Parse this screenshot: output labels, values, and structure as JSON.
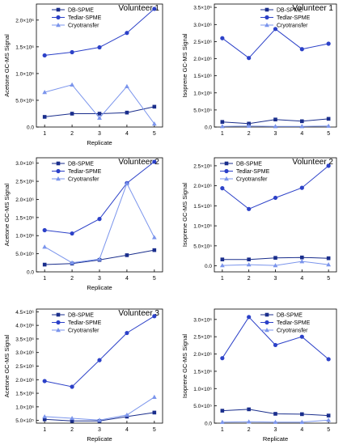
{
  "chart_data": [
    {
      "type": "line",
      "title": "Volunteer 1",
      "xlabel": "Replicate",
      "ylabel": "Acetone GC-MS Signal",
      "x": [
        1,
        2,
        3,
        4,
        5
      ],
      "ylim": [
        0,
        2300000
      ],
      "yticks": [
        {
          "value": 0,
          "label": "0.0"
        },
        {
          "value": 500000,
          "label": "5.0×10⁵"
        },
        {
          "value": 1000000,
          "label": "1.0×10⁶"
        },
        {
          "value": 1500000,
          "label": "1.5×10⁶"
        },
        {
          "value": 2000000,
          "label": "2.0×10⁶"
        }
      ],
      "legend": "top-left",
      "series": [
        {
          "name": "DB-SPME",
          "marker": "square",
          "values": [
            190000,
            250000,
            250000,
            270000,
            380000
          ]
        },
        {
          "name": "Tedlar-SPME",
          "marker": "circle",
          "values": [
            1340000,
            1400000,
            1490000,
            1760000,
            2210000
          ]
        },
        {
          "name": "Cryotransfer",
          "marker": "triangle",
          "values": [
            650000,
            790000,
            170000,
            760000,
            60000
          ]
        }
      ]
    },
    {
      "type": "line",
      "title": "Volunteer 1",
      "xlabel": "",
      "ylabel": "Isoprene GC-MS Signal",
      "x": [
        1,
        2,
        3,
        4,
        5
      ],
      "ylim": [
        0,
        3600000
      ],
      "yticks": [
        {
          "value": 0,
          "label": "0.0"
        },
        {
          "value": 500000,
          "label": "5.0×10⁵"
        },
        {
          "value": 1000000,
          "label": "1.0×10⁶"
        },
        {
          "value": 1500000,
          "label": "1.5×10⁶"
        },
        {
          "value": 2000000,
          "label": "2.0×10⁶"
        },
        {
          "value": 2500000,
          "label": "2.5×10⁶"
        },
        {
          "value": 3000000,
          "label": "3.0×10⁶"
        },
        {
          "value": 3500000,
          "label": "3.5×10⁶"
        }
      ],
      "legend": "top-right",
      "series": [
        {
          "name": "DB-SPME",
          "marker": "square",
          "values": [
            150000,
            100000,
            220000,
            170000,
            240000
          ]
        },
        {
          "name": "Tedlar-SPME",
          "marker": "circle",
          "values": [
            2600000,
            2020000,
            2870000,
            2280000,
            2440000
          ]
        },
        {
          "name": "Cryotransfer",
          "marker": "triangle",
          "values": [
            20000,
            30000,
            20000,
            20000,
            30000
          ]
        }
      ]
    },
    {
      "type": "line",
      "title": "Volunteer 2",
      "xlabel": "Replicate",
      "ylabel": "Acetone GC-MS Signal",
      "x": [
        1,
        2,
        3,
        4,
        5
      ],
      "ylim": [
        0,
        3150000
      ],
      "yticks": [
        {
          "value": 0,
          "label": "0.0"
        },
        {
          "value": 500000,
          "label": "5.0×10⁵"
        },
        {
          "value": 1000000,
          "label": "1.0×10⁶"
        },
        {
          "value": 1500000,
          "label": "1.5×10⁶"
        },
        {
          "value": 2000000,
          "label": "2.0×10⁶"
        },
        {
          "value": 2500000,
          "label": "2.5×10⁶"
        },
        {
          "value": 3000000,
          "label": "3.0×10⁶"
        }
      ],
      "legend": "top-left",
      "series": [
        {
          "name": "DB-SPME",
          "marker": "square",
          "values": [
            200000,
            230000,
            330000,
            460000,
            600000
          ]
        },
        {
          "name": "Tedlar-SPME",
          "marker": "circle",
          "values": [
            1150000,
            1060000,
            1460000,
            2450000,
            3040000
          ]
        },
        {
          "name": "Cryotransfer",
          "marker": "triangle",
          "values": [
            690000,
            250000,
            350000,
            2440000,
            950000
          ]
        }
      ]
    },
    {
      "type": "line",
      "title": "Volunteer 2",
      "xlabel": "",
      "ylabel": "Isoprene GC-MS Signal",
      "x": [
        1,
        2,
        3,
        4,
        5
      ],
      "ylim": [
        -150000,
        2700000
      ],
      "yticks": [
        {
          "value": 0,
          "label": "0.0"
        },
        {
          "value": 500000,
          "label": "5.0×10⁵"
        },
        {
          "value": 1000000,
          "label": "1.0×10⁶"
        },
        {
          "value": 1500000,
          "label": "1.5×10⁶"
        },
        {
          "value": 2000000,
          "label": "2.0×10⁶"
        },
        {
          "value": 2500000,
          "label": "2.5×10⁶"
        }
      ],
      "legend": "top-left",
      "series": [
        {
          "name": "DB-SPME",
          "marker": "square",
          "values": [
            160000,
            160000,
            200000,
            210000,
            190000
          ]
        },
        {
          "name": "Tedlar-SPME",
          "marker": "circle",
          "values": [
            1940000,
            1420000,
            1700000,
            1950000,
            2500000
          ]
        },
        {
          "name": "Cryotransfer",
          "marker": "triangle",
          "values": [
            10000,
            30000,
            10000,
            110000,
            30000
          ]
        }
      ]
    },
    {
      "type": "line",
      "title": "Volunteer 3",
      "xlabel": "Replicate",
      "ylabel": "Acetone GC-MS Signal",
      "x": [
        1,
        2,
        3,
        4,
        5
      ],
      "ylim": [
        400000,
        4600000
      ],
      "yticks": [
        {
          "value": 500000,
          "label": "5.0×10⁵"
        },
        {
          "value": 1000000,
          "label": "1.0×10⁶"
        },
        {
          "value": 1500000,
          "label": "1.5×10⁶"
        },
        {
          "value": 2000000,
          "label": "2.0×10⁶"
        },
        {
          "value": 2500000,
          "label": "2.5×10⁶"
        },
        {
          "value": 3000000,
          "label": "3.0×10⁶"
        },
        {
          "value": 3500000,
          "label": "3.5×10⁶"
        },
        {
          "value": 4000000,
          "label": "4.0×10⁶"
        },
        {
          "value": 4500000,
          "label": "4.5×10⁶"
        }
      ],
      "legend": "top-left",
      "series": [
        {
          "name": "DB-SPME",
          "marker": "square",
          "values": [
            540000,
            480000,
            480000,
            640000,
            790000
          ]
        },
        {
          "name": "Tedlar-SPME",
          "marker": "circle",
          "values": [
            1950000,
            1740000,
            2720000,
            3720000,
            4340000
          ]
        },
        {
          "name": "Cryotransfer",
          "marker": "triangle",
          "values": [
            640000,
            580000,
            510000,
            700000,
            1360000
          ]
        }
      ]
    },
    {
      "type": "line",
      "title": "",
      "xlabel": "Replicate",
      "ylabel": "Isoprene GC-MS Signal",
      "x": [
        1,
        2,
        3,
        4,
        5
      ],
      "ylim": [
        0,
        3300000
      ],
      "yticks": [
        {
          "value": 0,
          "label": "0.0"
        },
        {
          "value": 500000,
          "label": "5.0×10⁵"
        },
        {
          "value": 1000000,
          "label": "1.0×10⁶"
        },
        {
          "value": 1500000,
          "label": "1.5×10⁶"
        },
        {
          "value": 2000000,
          "label": "2.0×10⁶"
        },
        {
          "value": 2500000,
          "label": "2.5×10⁶"
        },
        {
          "value": 3000000,
          "label": "3.0×10⁶"
        }
      ],
      "legend": "top-right",
      "series": [
        {
          "name": "DB-SPME",
          "marker": "square",
          "values": [
            360000,
            400000,
            270000,
            260000,
            220000
          ]
        },
        {
          "name": "Tedlar-SPME",
          "marker": "circle",
          "values": [
            1880000,
            3070000,
            2260000,
            2500000,
            1850000
          ]
        },
        {
          "name": "Cryotransfer",
          "marker": "triangle",
          "values": [
            30000,
            40000,
            30000,
            30000,
            90000
          ]
        }
      ]
    }
  ],
  "colors": {
    "DB-SPME": "#1a2e8c",
    "Tedlar-SPME": "#2c41c8",
    "Cryotransfer": "#7b95ec",
    "axis": "#000000",
    "background": "#ffffff"
  }
}
